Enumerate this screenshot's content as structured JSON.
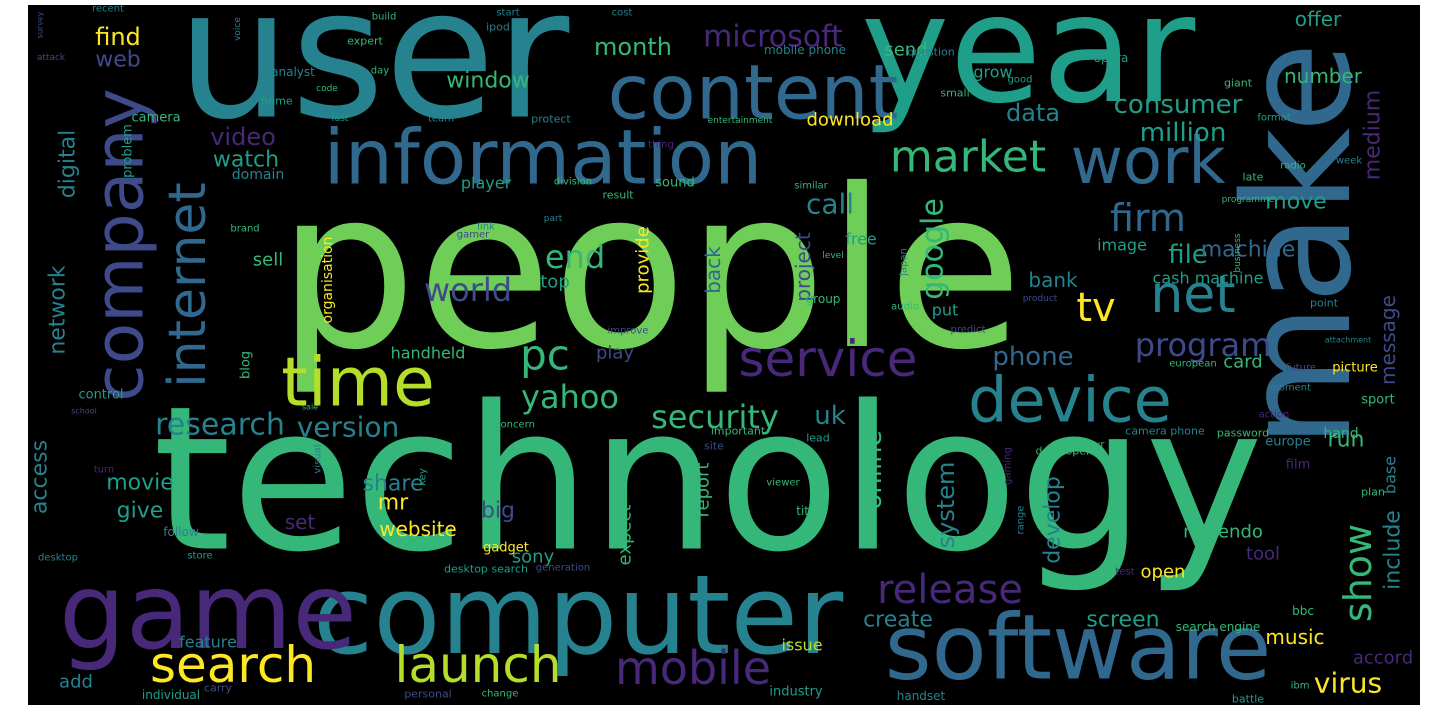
{
  "palette": {
    "yellow": "#fde725",
    "lime": "#b5de2b",
    "green": "#6ece58",
    "teal_green": "#35b779",
    "sea": "#1f9e89",
    "teal": "#26828e",
    "blue_teal": "#31688e",
    "indigo": "#3e4a89",
    "violet": "#482878",
    "purple": "#440154",
    "background": "#000000"
  },
  "words": [
    "people",
    "technology",
    "user",
    "year",
    "make",
    "computer",
    "game",
    "software",
    "information",
    "content",
    "company",
    "time",
    "internet",
    "work",
    "device",
    "search",
    "launch",
    "service",
    "mobile",
    "market",
    "net",
    "firm",
    "tv",
    "pc",
    "release",
    "security",
    "yahoo",
    "program",
    "show",
    "phone",
    "research",
    "version",
    "window",
    "consumer",
    "million",
    "microsoft",
    "data",
    "video",
    "watch",
    "call",
    "uk",
    "world",
    "end",
    "file",
    "google",
    "machine",
    "move",
    "medium",
    "network",
    "digital",
    "access",
    "give",
    "movie",
    "share",
    "mr",
    "big",
    "set",
    "website",
    "sony",
    "online",
    "system",
    "develop",
    "run",
    "virus",
    "music",
    "include",
    "nintendo",
    "message",
    "create",
    "screen",
    "open",
    "tool",
    "accord",
    "add",
    "feature",
    "issue",
    "industry",
    "handset",
    "individual",
    "carry",
    "personal",
    "change",
    "battle",
    "ibm",
    "bbc",
    "search engine",
    "desktop search",
    "generation",
    "test",
    "handheld",
    "control",
    "blog",
    "play",
    "bank",
    "cash machine",
    "sell",
    "top",
    "back",
    "provide",
    "project",
    "free",
    "image",
    "put",
    "organisation",
    "player",
    "domain",
    "problem",
    "camera",
    "analyst",
    "home",
    "grow",
    "download",
    "number",
    "offer",
    "find",
    "web",
    "month",
    "send",
    "expect",
    "report",
    "gadget",
    "base",
    "card",
    "picture",
    "sport",
    "hand",
    "europe",
    "film",
    "plan",
    "password",
    "camera phone",
    "developer",
    "hour",
    "lead",
    "important",
    "concern",
    "visual",
    "viewer",
    "title",
    "key",
    "follow",
    "store",
    "desktop",
    "school",
    "turn",
    "sale",
    "attack",
    "survey",
    "recent",
    "build",
    "voice",
    "start",
    "ipod",
    "cost",
    "expert",
    "mobile phone",
    "question",
    "opera",
    "good",
    "giant",
    "small",
    "day",
    "code",
    "team",
    "fast",
    "protect",
    "entertainment",
    "thing",
    "radio",
    "format",
    "week",
    "late",
    "sound",
    "division",
    "result",
    "similar",
    "brand",
    "gamer",
    "link",
    "part",
    "level",
    "japan",
    "audio",
    "group",
    "product",
    "point",
    "predict",
    "improve",
    "attachment",
    "future",
    "european",
    "moment",
    "action",
    "site",
    "gaming",
    "range",
    "business",
    "programme"
  ]
}
